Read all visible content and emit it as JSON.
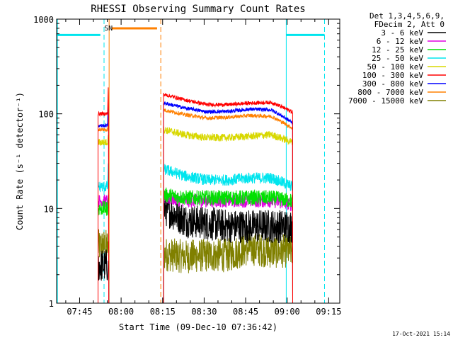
{
  "chart_data": {
    "type": "line",
    "title": "RHESSI Observing Summary Count Rates",
    "xlabel": "Start Time (09-Dec-10 07:36:42)",
    "ylabel": "Count Rate (s⁻¹ detector⁻¹)",
    "yscale": "log",
    "ylim": [
      1,
      1000
    ],
    "xlim": [
      "07:36:42",
      "09:19:00"
    ],
    "x_ticks": [
      "07:45",
      "08:00",
      "08:15",
      "08:30",
      "08:45",
      "09:00",
      "09:15"
    ],
    "y_ticks": [
      "1",
      "10",
      "100",
      "1000"
    ],
    "legend_header": [
      "Det 1,3,4,5,6,9,",
      "FDecim 2, Att 0"
    ],
    "legend_position": "right",
    "timestamp": "17-Oct-2021 15:14",
    "grid": false,
    "flag_labels": [
      {
        "text": "S",
        "time": "07:54:40",
        "color": "#ff8000"
      },
      {
        "text": "N",
        "time": "07:56:10",
        "color": "#00e5ee"
      }
    ],
    "markers": {
      "saa_bars": [
        {
          "start": "07:36:42",
          "end": "07:52:30",
          "level": 680,
          "color": "#00e5ee"
        },
        {
          "start": "07:56:30",
          "end": "08:13:00",
          "level": 800,
          "color": "#ff8000"
        },
        {
          "start": "08:59:40",
          "end": "09:13:30",
          "level": 680,
          "color": "#00e5ee"
        }
      ],
      "vlines": [
        {
          "time": "07:37:00",
          "color": "#00e5ee",
          "dash": false
        },
        {
          "time": "07:53:50",
          "color": "#00e5ee",
          "dash": true
        },
        {
          "time": "07:55:40",
          "color": "#ff8000",
          "dash": false
        },
        {
          "time": "08:14:20",
          "color": "#ff8000",
          "dash": true
        },
        {
          "time": "08:59:40",
          "color": "#00e5ee",
          "dash": false
        },
        {
          "time": "09:13:30",
          "color": "#00e5ee",
          "dash": true
        }
      ]
    },
    "segments": [
      {
        "start": "07:51:40",
        "end": "07:55:10",
        "flare": "07:55:20"
      },
      {
        "start": "08:15:20",
        "end": "09:02:00",
        "flare": null
      }
    ],
    "series": [
      {
        "name": "3 - 6 keV",
        "color": "#000000",
        "seg1": 2.5,
        "seg2": [
          10,
          7.5,
          7,
          6.5,
          6.5,
          6.5,
          6.5
        ],
        "noise": 0.18,
        "flare_peak": 2.8
      },
      {
        "name": "6 - 12 keV",
        "color": "#e000e0",
        "seg1": 12,
        "seg2": [
          13,
          12,
          12,
          12,
          12,
          12,
          11
        ],
        "noise": 0.07,
        "flare_peak": 14
      },
      {
        "name": "12 - 25 keV",
        "color": "#00e000",
        "seg1": 10,
        "seg2": [
          14,
          13,
          13,
          13,
          13,
          13,
          12
        ],
        "noise": 0.08,
        "flare_peak": 13
      },
      {
        "name": "25 - 50 keV",
        "color": "#00e5ee",
        "seg1": 17,
        "seg2": [
          26,
          22,
          20,
          20,
          21,
          21,
          17
        ],
        "noise": 0.06,
        "flare_peak": 30
      },
      {
        "name": "50 - 100 keV",
        "color": "#d8d800",
        "seg1": 50,
        "seg2": [
          68,
          60,
          56,
          56,
          58,
          60,
          50
        ],
        "noise": 0.04,
        "flare_peak": 60
      },
      {
        "name": "100 - 300 keV",
        "color": "#ff0000",
        "seg1": 100,
        "seg2": [
          160,
          140,
          125,
          125,
          130,
          132,
          104
        ],
        "noise": 0.02,
        "flare_peak": 190
      },
      {
        "name": "300 - 800 keV",
        "color": "#0000ff",
        "seg1": 75,
        "seg2": [
          130,
          115,
          105,
          106,
          112,
          110,
          80
        ],
        "noise": 0.02,
        "flare_peak": 150
      },
      {
        "name": "800 - 7000 keV",
        "color": "#ff8000",
        "seg1": 68,
        "seg2": [
          110,
          98,
          90,
          92,
          96,
          94,
          70
        ],
        "noise": 0.02,
        "flare_peak": 130
      },
      {
        "name": "7000 - 15000 keV",
        "color": "#808000",
        "seg1": 4,
        "seg2": [
          3.3,
          3.1,
          3.2,
          3.2,
          3.8,
          3.5,
          3.6
        ],
        "noise": 0.18,
        "flare_peak": 4.5
      }
    ]
  }
}
